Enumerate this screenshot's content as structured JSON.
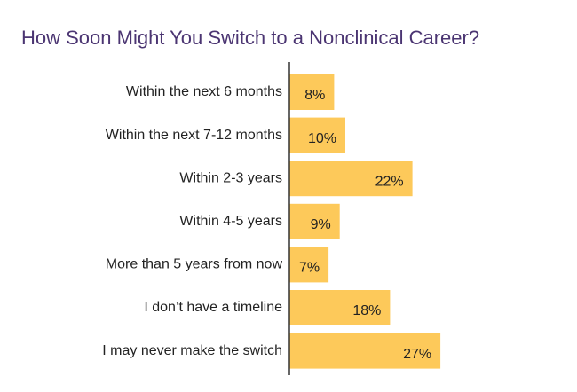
{
  "chart_data": {
    "type": "bar",
    "orientation": "horizontal",
    "title": "How Soon Might You Switch to a Nonclinical Career?",
    "categories": [
      "Within the next 6 months",
      "Within the next 7-12 months",
      "Within 2-3 years",
      "Within 4-5 years",
      "More than 5 years from now",
      "I don’t have a timeline",
      "I may never make the switch"
    ],
    "values": [
      8,
      10,
      22,
      9,
      7,
      18,
      27
    ],
    "value_labels": [
      "8%",
      "10%",
      "22%",
      "9%",
      "7%",
      "18%",
      "27%"
    ],
    "xlabel": "",
    "ylabel": "",
    "grid": false,
    "legend": "none",
    "bar_color": "#fdc95a",
    "axis_color": "#333333",
    "title_color": "#4b3572"
  }
}
